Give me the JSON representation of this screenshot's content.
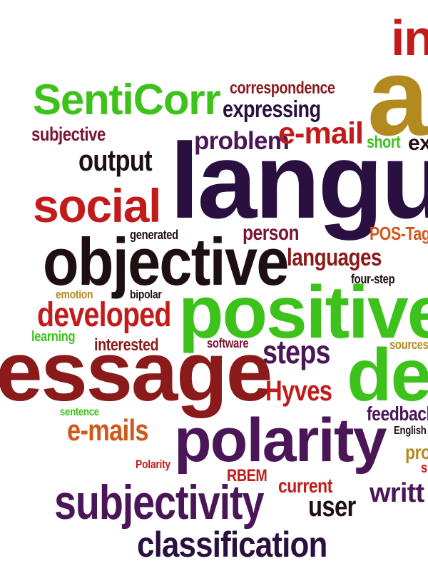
{
  "palette": {
    "red": "#c21b1b",
    "dark_red": "#8b1a1a",
    "maroon": "#7a1430",
    "purple": "#4a1657",
    "dark_purple": "#2a1040",
    "black": "#1e0f12",
    "green": "#3dc21b",
    "olive": "#b38a1f",
    "orange": "#d2571a",
    "brown": "#5b1a1a"
  },
  "words": [
    {
      "text": "inp",
      "color": "red"
    },
    {
      "text": "an",
      "color": "olive"
    },
    {
      "text": "SentiCorr",
      "color": "green"
    },
    {
      "text": "correspondence",
      "color": "dark_red"
    },
    {
      "text": "expressing",
      "color": "dark_purple"
    },
    {
      "text": "subjective",
      "color": "maroon"
    },
    {
      "text": "problem",
      "color": "purple"
    },
    {
      "text": "e-mail",
      "color": "red"
    },
    {
      "text": "short",
      "color": "green"
    },
    {
      "text": "ex",
      "color": "black"
    },
    {
      "text": "output",
      "color": "black"
    },
    {
      "text": "langua",
      "color": "dark_purple"
    },
    {
      "text": "social",
      "color": "red"
    },
    {
      "text": "generated",
      "color": "black"
    },
    {
      "text": "person",
      "color": "maroon"
    },
    {
      "text": "POS-Tag",
      "color": "orange"
    },
    {
      "text": "objective",
      "color": "black"
    },
    {
      "text": "languages",
      "color": "dark_red"
    },
    {
      "text": "four-step",
      "color": "black"
    },
    {
      "text": "emotion",
      "color": "olive"
    },
    {
      "text": "bipolar",
      "color": "black"
    },
    {
      "text": "developed",
      "color": "red"
    },
    {
      "text": "positive",
      "color": "green"
    },
    {
      "text": "learning",
      "color": "green"
    },
    {
      "text": "interested",
      "color": "dark_red"
    },
    {
      "text": "software",
      "color": "maroon"
    },
    {
      "text": "steps",
      "color": "purple"
    },
    {
      "text": "sources",
      "color": "olive"
    },
    {
      "text": "essage",
      "color": "dark_red"
    },
    {
      "text": "det",
      "color": "green"
    },
    {
      "text": "Hyves",
      "color": "red"
    },
    {
      "text": "sentence",
      "color": "green"
    },
    {
      "text": "feedback",
      "color": "purple"
    },
    {
      "text": "e-mails",
      "color": "orange"
    },
    {
      "text": "polarity",
      "color": "purple"
    },
    {
      "text": "English",
      "color": "black"
    },
    {
      "text": "pro",
      "color": "olive"
    },
    {
      "text": "Polarity",
      "color": "red"
    },
    {
      "text": "RBEM",
      "color": "red"
    },
    {
      "text": "current",
      "color": "red"
    },
    {
      "text": "s",
      "color": "red"
    },
    {
      "text": "writt",
      "color": "purple"
    },
    {
      "text": "subjectivity",
      "color": "purple"
    },
    {
      "text": "user",
      "color": "black"
    },
    {
      "text": "classification",
      "color": "dark_purple"
    }
  ]
}
